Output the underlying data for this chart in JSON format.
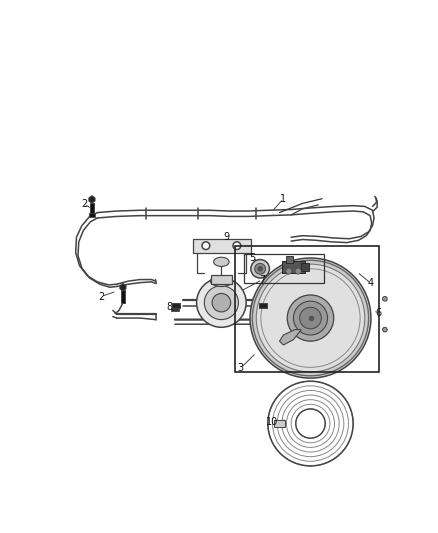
{
  "bg_color": "#ffffff",
  "fig_width": 4.38,
  "fig_height": 5.33,
  "dpi": 100,
  "line_color": "#444444",
  "label_fontsize": 7.0,
  "box_color": "#333333"
}
